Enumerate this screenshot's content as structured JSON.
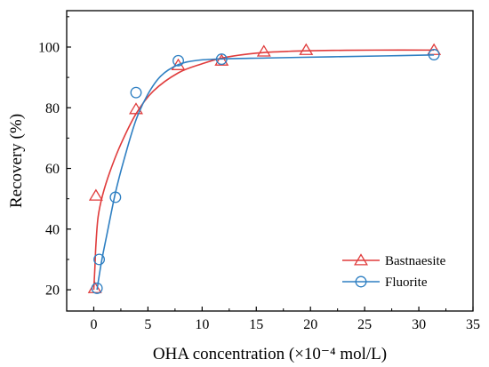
{
  "chart_data": {
    "type": "line",
    "title": "",
    "xlabel": "OHA concentration (×10⁻⁴ mol/L)",
    "ylabel": "Recovery (%)",
    "xlim": [
      -2.5,
      35
    ],
    "ylim": [
      13,
      112
    ],
    "x_ticks": [
      0,
      5,
      10,
      15,
      20,
      25,
      30,
      35
    ],
    "y_ticks": [
      20,
      40,
      60,
      80,
      100
    ],
    "legend_position": "bottom-right",
    "grid": false,
    "series": [
      {
        "name": "Bastnaesite",
        "color": "#e03c3c",
        "marker": "triangle",
        "points": [
          {
            "x": 0.1,
            "y": 20.5
          },
          {
            "x": 0.2,
            "y": 51
          },
          {
            "x": 3.9,
            "y": 79.5
          },
          {
            "x": 7.8,
            "y": 94
          },
          {
            "x": 11.8,
            "y": 95.5
          },
          {
            "x": 15.7,
            "y": 98.5
          },
          {
            "x": 19.6,
            "y": 99
          },
          {
            "x": 31.4,
            "y": 99
          }
        ],
        "curve": [
          {
            "x": 0,
            "y": 20
          },
          {
            "x": 0.1,
            "y": 27
          },
          {
            "x": 0.2,
            "y": 35
          },
          {
            "x": 0.4,
            "y": 44
          },
          {
            "x": 0.8,
            "y": 51
          },
          {
            "x": 1.5,
            "y": 59
          },
          {
            "x": 2.5,
            "y": 68
          },
          {
            "x": 3.9,
            "y": 78
          },
          {
            "x": 5.5,
            "y": 85.5
          },
          {
            "x": 7.8,
            "y": 91.5
          },
          {
            "x": 10,
            "y": 94.5
          },
          {
            "x": 12,
            "y": 96.5
          },
          {
            "x": 15,
            "y": 98
          },
          {
            "x": 18,
            "y": 98.6
          },
          {
            "x": 22,
            "y": 98.9
          },
          {
            "x": 26,
            "y": 99
          },
          {
            "x": 31.4,
            "y": 99
          }
        ]
      },
      {
        "name": "Fluorite",
        "color": "#2e7fc2",
        "marker": "circle",
        "points": [
          {
            "x": 0.3,
            "y": 20.5
          },
          {
            "x": 0.5,
            "y": 30
          },
          {
            "x": 2.0,
            "y": 50.5
          },
          {
            "x": 3.9,
            "y": 85
          },
          {
            "x": 7.8,
            "y": 95.5
          },
          {
            "x": 11.8,
            "y": 96
          },
          {
            "x": 31.4,
            "y": 97.5
          }
        ],
        "curve": [
          {
            "x": 0.3,
            "y": 20
          },
          {
            "x": 0.7,
            "y": 29
          },
          {
            "x": 1.2,
            "y": 38
          },
          {
            "x": 2.0,
            "y": 52
          },
          {
            "x": 2.8,
            "y": 63
          },
          {
            "x": 3.9,
            "y": 76
          },
          {
            "x": 5.0,
            "y": 84.5
          },
          {
            "x": 6.2,
            "y": 90.5
          },
          {
            "x": 7.8,
            "y": 94.2
          },
          {
            "x": 9.5,
            "y": 95.6
          },
          {
            "x": 11.8,
            "y": 96.1
          },
          {
            "x": 16,
            "y": 96.4
          },
          {
            "x": 22,
            "y": 96.8
          },
          {
            "x": 27,
            "y": 97.1
          },
          {
            "x": 31.4,
            "y": 97.4
          }
        ]
      }
    ]
  }
}
